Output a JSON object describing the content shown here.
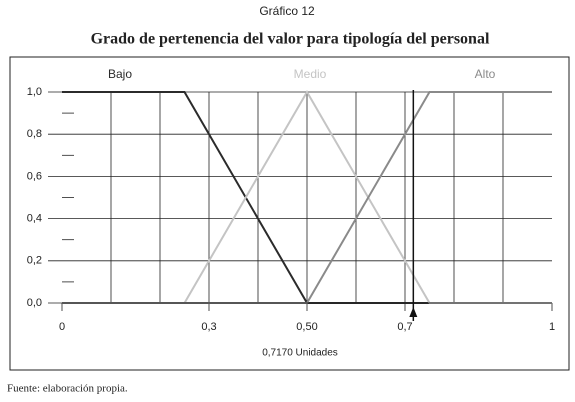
{
  "chart_data": {
    "type": "line",
    "overtitle": "Gráfico 12",
    "title": "Grado de pertenencia del valor para tipología del personal",
    "source": "Fuente: elaboración propia.",
    "series": [
      {
        "name": "Bajo",
        "color": "#2b2b2b",
        "x": [
          0,
          0.25,
          0.5,
          1
        ],
        "values": [
          1,
          1,
          0,
          0
        ]
      },
      {
        "name": "Medio",
        "color": "#c4c4c4",
        "x": [
          0,
          0.25,
          0.5,
          0.75,
          1
        ],
        "values": [
          0,
          0,
          1,
          0,
          0
        ]
      },
      {
        "name": "Alto",
        "color": "#8a8a8a",
        "x": [
          0,
          0.5,
          0.75,
          1
        ],
        "values": [
          0,
          0,
          1,
          1
        ]
      }
    ],
    "xlim": [
      0,
      1
    ],
    "xticks": [
      {
        "value": 0,
        "label": "0"
      },
      {
        "value": 0.3,
        "label": "0,3"
      },
      {
        "value": 0.5,
        "label": "0,50"
      },
      {
        "value": 0.7,
        "label": "0,7"
      },
      1
    ],
    "x_grid_lines": [
      0.1,
      0.2,
      0.3,
      0.4,
      0.5,
      0.6,
      0.7,
      0.8,
      0.9
    ],
    "ylim": [
      0,
      1
    ],
    "yticks": [
      {
        "value": 0,
        "label": "0,0"
      },
      {
        "value": 0.2,
        "label": "0,2"
      },
      {
        "value": 0.4,
        "label": "0,4"
      },
      {
        "value": 0.6,
        "label": "0,6"
      },
      {
        "value": 0.8,
        "label": "0,8"
      },
      {
        "value": 1,
        "label": "1,0"
      }
    ],
    "y_minor_ticks": [
      0.1,
      0.3,
      0.5,
      0.7,
      0.9
    ],
    "marker": {
      "value": 0.717,
      "label": "0,7170 Unidades"
    },
    "grid": true
  }
}
